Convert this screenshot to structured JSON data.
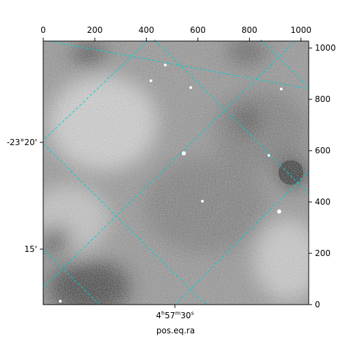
{
  "chart_data": {
    "type": "image",
    "xlim": [
      0,
      1030
    ],
    "xticks": [
      0,
      200,
      400,
      600,
      800,
      1000
    ],
    "ylim": [
      0,
      1027
    ],
    "yticks": [
      0,
      200,
      400,
      600,
      800,
      1000
    ],
    "dec_ticks": [
      "-23°20'",
      "15'"
    ],
    "ra_tick": [
      "4",
      "h",
      "57",
      "m",
      "30",
      "s"
    ],
    "xlabel": "pos.eq.ra",
    "grid_color": "#00d0d0"
  }
}
